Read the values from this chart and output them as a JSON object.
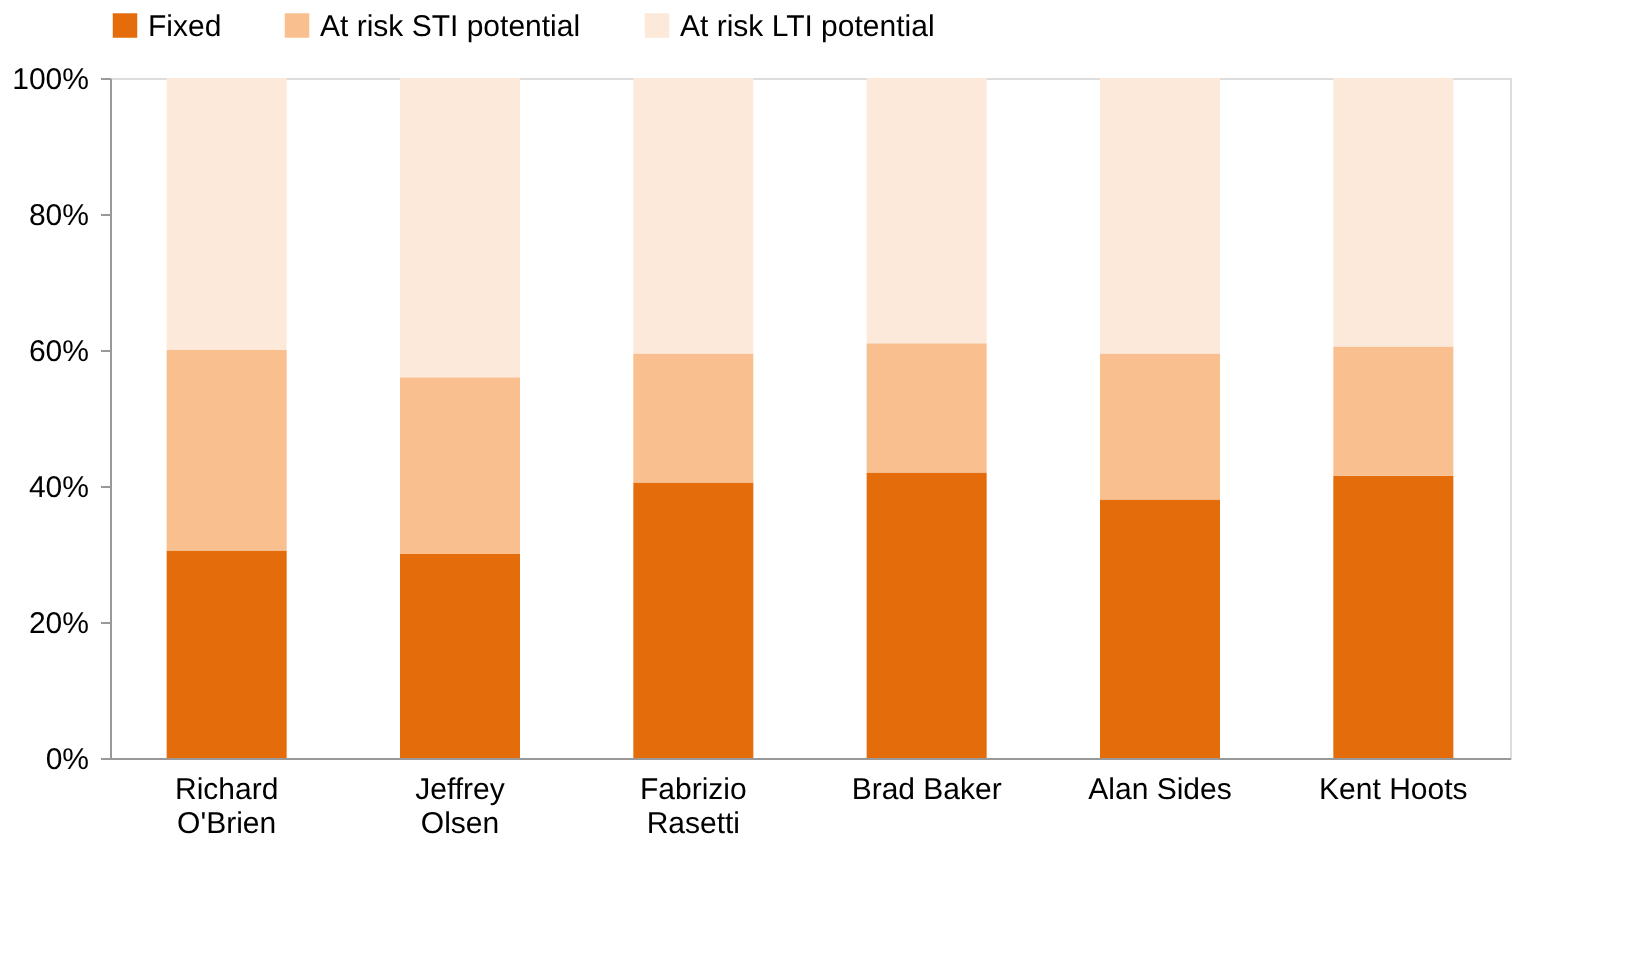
{
  "chart_data": {
    "type": "bar",
    "stacked": true,
    "legend": "top",
    "grid": false,
    "categories": [
      "Richard\nO'Brien",
      "Jeffrey\nOlsen",
      "Fabrizio\nRasetti",
      "Brad Baker",
      "Alan Sides",
      "Kent Hoots"
    ],
    "ylim": [
      0,
      100
    ],
    "yticks": [
      {
        "value": 0,
        "label": "0%"
      },
      {
        "value": 20,
        "label": "20%"
      },
      {
        "value": 40,
        "label": "40%"
      },
      {
        "value": 60,
        "label": "60%"
      },
      {
        "value": 80,
        "label": "80%"
      },
      {
        "value": 100,
        "label": "100%"
      }
    ],
    "series": [
      {
        "name": "Fixed",
        "color": "#e46c0a",
        "values": [
          30.5,
          30,
          40.5,
          42,
          38,
          41.5
        ]
      },
      {
        "name": "At risk STI potential",
        "color": "#f9bf8f",
        "values": [
          29.5,
          26,
          19,
          19,
          21.5,
          19
        ]
      },
      {
        "name": "At risk LTI potential",
        "color": "#fde9d9",
        "values": [
          40,
          44,
          40.5,
          39,
          40.5,
          39.5
        ]
      }
    ]
  }
}
